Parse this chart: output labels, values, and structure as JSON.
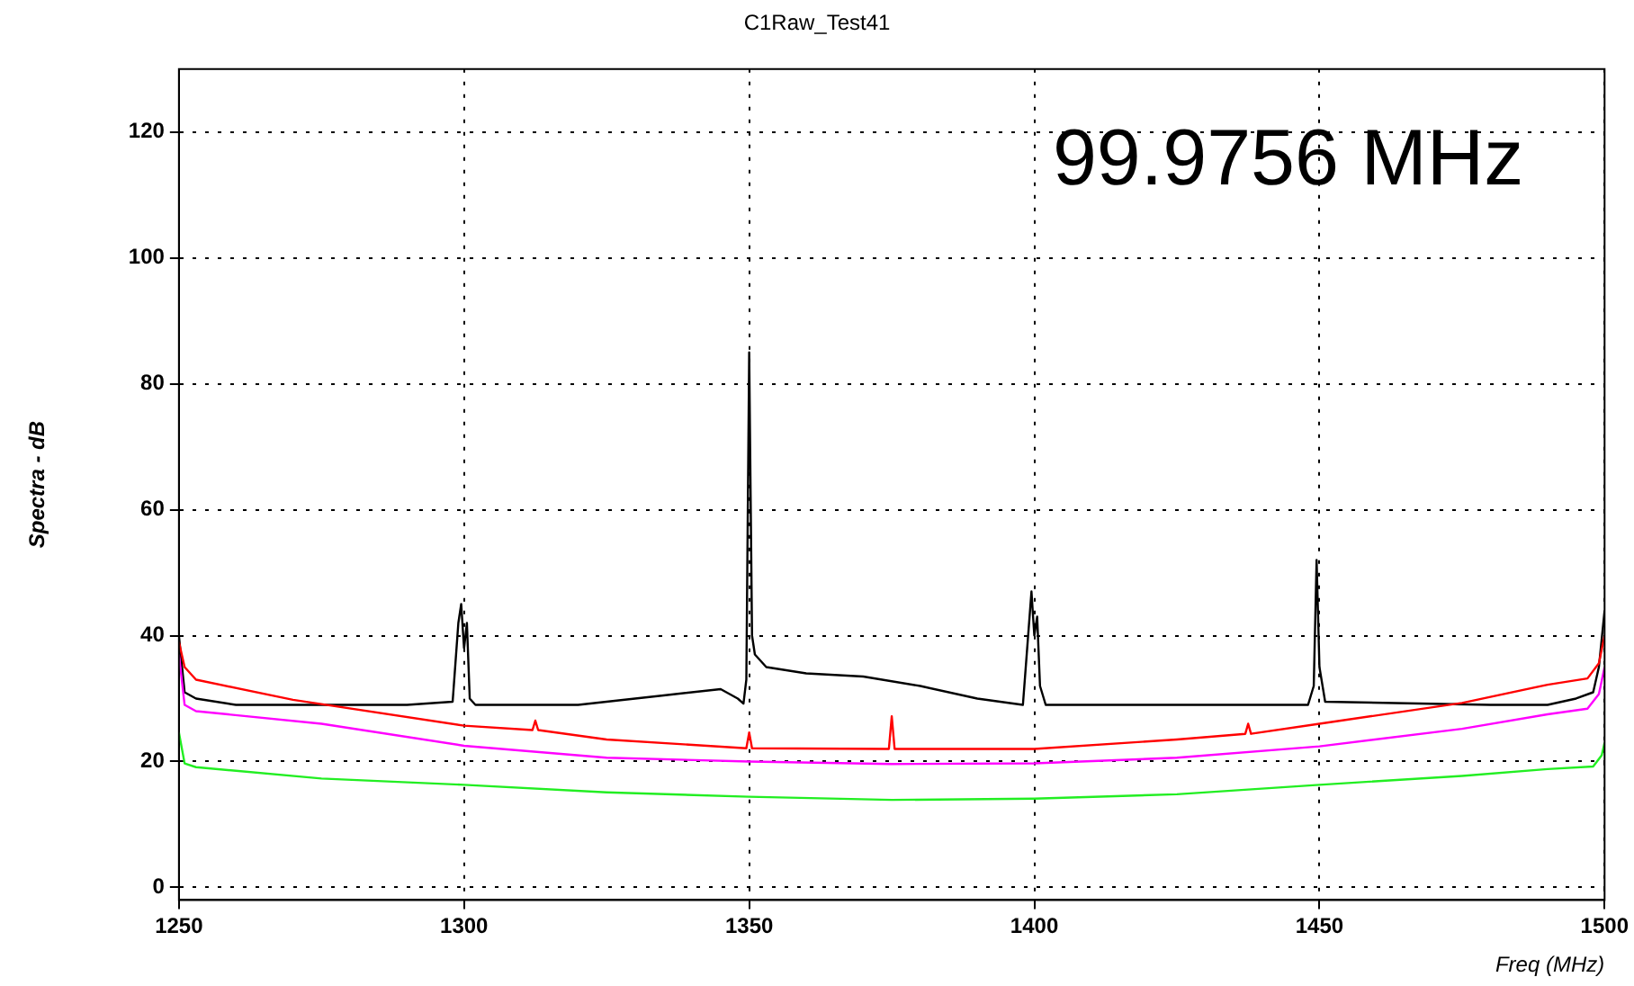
{
  "chart_data": {
    "type": "line",
    "title": "C1Raw_Test41",
    "xlabel": "Freq (MHz)",
    "ylabel": "Spectra - dB",
    "annotations": [
      "99.9756 MHz"
    ],
    "xlim": [
      1250,
      1500
    ],
    "xticks": [
      1250,
      1300,
      1350,
      1400,
      1450,
      1500
    ],
    "ylim": [
      -2,
      130
    ],
    "yticks": [
      0,
      20,
      40,
      60,
      80,
      100,
      120
    ],
    "grid": true,
    "legend": false,
    "marker": "none",
    "line_style": "solid",
    "series": [
      {
        "color": "#ff00ff",
        "x": [
          1250,
          1251,
          1253,
          1275,
          1300,
          1325,
          1350,
          1375,
          1400,
          1425,
          1450,
          1475,
          1490,
          1497,
          1499,
          1500
        ],
        "values": [
          37,
          29,
          28,
          26,
          22.5,
          20.6,
          20,
          19.6,
          19.7,
          20.6,
          22.4,
          25.2,
          27.5,
          28.4,
          30.7,
          35
        ]
      },
      {
        "color": "#22ee22",
        "x": [
          1250,
          1251,
          1253,
          1275,
          1300,
          1325,
          1350,
          1375,
          1400,
          1425,
          1450,
          1475,
          1490,
          1498,
          1499.5,
          1500
        ],
        "values": [
          24.6,
          19.7,
          19.1,
          17.3,
          16.3,
          15.1,
          14.4,
          13.9,
          14.1,
          14.8,
          16.3,
          17.7,
          18.8,
          19.2,
          21,
          23
        ]
      },
      {
        "color": "#ff0000",
        "x": [
          1250,
          1251,
          1253,
          1270,
          1300,
          1312,
          1312.5,
          1313,
          1325,
          1349.5,
          1350,
          1350.5,
          1374.5,
          1375,
          1375.5,
          1400,
          1425,
          1437,
          1437.5,
          1438,
          1450,
          1475,
          1490,
          1497,
          1499,
          1500
        ],
        "values": [
          39,
          35,
          33,
          29.8,
          25.7,
          25,
          26.5,
          25,
          23.5,
          22.1,
          24.6,
          22.1,
          22,
          27.2,
          22,
          22,
          23.5,
          24.4,
          26,
          24.4,
          26,
          29.3,
          32.2,
          33.2,
          35.6,
          40
        ]
      },
      {
        "color": "#000000",
        "x": [
          1250,
          1251,
          1253,
          1260,
          1290,
          1298,
          1299,
          1299.5,
          1300,
          1300.5,
          1301,
          1302,
          1320,
          1335,
          1345,
          1348,
          1349,
          1349.5,
          1350,
          1350.5,
          1351,
          1353,
          1360,
          1370,
          1380,
          1390,
          1398,
          1399.5,
          1400,
          1400.5,
          1401,
          1402,
          1420,
          1448,
          1449,
          1449.5,
          1450,
          1451,
          1480,
          1490,
          1495,
          1498,
          1499,
          1500
        ],
        "values": [
          40,
          31,
          30,
          29,
          29,
          29.5,
          42,
          45,
          38,
          42,
          30,
          29,
          29,
          30.5,
          31.5,
          30,
          29.2,
          33,
          85,
          40,
          37,
          35,
          34,
          33.5,
          32,
          30,
          29,
          47,
          40,
          43,
          32,
          29,
          29,
          29,
          32,
          52,
          35,
          29.5,
          29,
          29,
          30,
          31,
          35,
          44
        ]
      }
    ]
  }
}
